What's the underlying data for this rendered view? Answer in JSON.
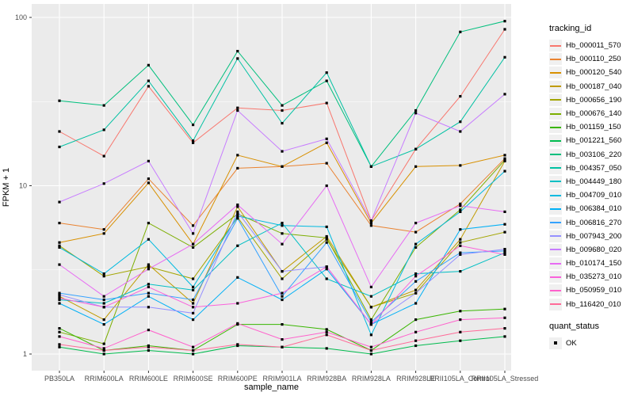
{
  "chart_data": {
    "type": "line",
    "title": "",
    "xlabel": "sample_name",
    "ylabel": "FPKM + 1",
    "y_scale": "log10",
    "ylim": [
      1,
      100
    ],
    "y_major_ticks": [
      1,
      10,
      100
    ],
    "y_tick_labels": [
      "1",
      "10",
      "100"
    ],
    "y_minor_ticks": [
      3.162,
      31.62
    ],
    "grid": true,
    "panel_background": "#EBEBEB",
    "gridline_color": "#FFFFFF",
    "tick_label_color": "#4D4D4D",
    "point_marker": {
      "shape": "square",
      "color": "#000000"
    },
    "legend_position": "right",
    "legend": {
      "tracking_title": "tracking_id",
      "quant_title": "quant_status",
      "quant_items": [
        {
          "label": "OK",
          "marker": "black-square"
        }
      ]
    },
    "categories": [
      "PB350LA",
      "RRIM600LA",
      "RRIM600LE",
      "RRIM600SE",
      "RRIM600PE",
      "RRIM901LA",
      "RRIM928BA",
      "RRIM928LA",
      "RRIM928LE",
      "RRII105LA_Control",
      "RRII105LA_Stressed"
    ],
    "series": [
      {
        "name": "Hb_000011_570",
        "color": "#F8766D",
        "values": [
          21,
          15,
          39,
          18,
          29,
          28,
          31,
          6.2,
          16.5,
          34,
          85
        ]
      },
      {
        "name": "Hb_000110_250",
        "color": "#EA8331",
        "values": [
          6.0,
          5.5,
          11.0,
          5.8,
          12.7,
          13.0,
          13.6,
          5.8,
          5.3,
          7.8,
          14.5
        ]
      },
      {
        "name": "Hb_000120_540",
        "color": "#D89000",
        "values": [
          4.6,
          5.2,
          10.4,
          4.5,
          15.2,
          13.0,
          18.0,
          6.0,
          13.0,
          13.2,
          15.2
        ]
      },
      {
        "name": "Hb_000187_040",
        "color": "#C09B00",
        "values": [
          2.2,
          1.6,
          3.4,
          2.0,
          7.5,
          3.1,
          5.0,
          1.9,
          2.4,
          4.8,
          14.0
        ]
      },
      {
        "name": "Hb_000656_190",
        "color": "#A3A500",
        "values": [
          4.4,
          2.9,
          3.3,
          2.8,
          6.5,
          2.8,
          4.8,
          1.9,
          2.3,
          4.6,
          5.3
        ]
      },
      {
        "name": "Hb_000676_140",
        "color": "#7CAE00",
        "values": [
          1.35,
          1.15,
          6.0,
          4.3,
          6.8,
          5.2,
          4.9,
          1.6,
          4.3,
          7.2,
          14.2
        ]
      },
      {
        "name": "Hb_001159_150",
        "color": "#39B600",
        "values": [
          1.42,
          1.05,
          1.12,
          1.05,
          1.5,
          1.5,
          1.4,
          1.05,
          1.6,
          1.8,
          1.85
        ]
      },
      {
        "name": "Hb_001221_560",
        "color": "#00BB4E",
        "values": [
          1.1,
          1.0,
          1.05,
          1.0,
          1.12,
          1.1,
          1.08,
          1.0,
          1.12,
          1.2,
          1.27
        ]
      },
      {
        "name": "Hb_003106_220",
        "color": "#00BF7D",
        "values": [
          32,
          30,
          52,
          23,
          63,
          30,
          42,
          13,
          28,
          82,
          95
        ]
      },
      {
        "name": "Hb_004357_050",
        "color": "#00C1A3",
        "values": [
          17,
          21.5,
          42,
          18.5,
          57,
          23.5,
          47,
          13,
          16.5,
          24,
          58
        ]
      },
      {
        "name": "Hb_004449_180",
        "color": "#00BFC4",
        "values": [
          2.1,
          2.0,
          2.6,
          2.4,
          4.4,
          6.0,
          2.8,
          2.2,
          3.0,
          3.1,
          4.0
        ]
      },
      {
        "name": "Hb_004709_010",
        "color": "#00BAE0",
        "values": [
          4.3,
          3.0,
          4.8,
          2.5,
          6.6,
          5.8,
          5.7,
          1.3,
          4.5,
          7.0,
          12.2
        ]
      },
      {
        "name": "Hb_006384_010",
        "color": "#00B0F6",
        "values": [
          2.0,
          1.5,
          2.2,
          1.6,
          2.85,
          2.1,
          3.2,
          1.5,
          2.0,
          5.5,
          5.9
        ]
      },
      {
        "name": "Hb_006816_270",
        "color": "#35A2FF",
        "values": [
          2.3,
          2.1,
          2.3,
          2.1,
          6.4,
          2.2,
          4.6,
          1.55,
          2.7,
          4.0,
          4.1
        ]
      },
      {
        "name": "Hb_007943_200",
        "color": "#9590FF",
        "values": [
          2.25,
          1.9,
          1.9,
          1.75,
          7.0,
          3.1,
          3.3,
          1.5,
          2.3,
          3.9,
          4.2
        ]
      },
      {
        "name": "Hb_009680_020",
        "color": "#C77CFF",
        "values": [
          8.0,
          10.3,
          14.0,
          5.2,
          28,
          16,
          19,
          6.2,
          27,
          21,
          35
        ]
      },
      {
        "name": "Hb_010174_150",
        "color": "#E76BF3",
        "values": [
          3.4,
          2.2,
          3.2,
          4.5,
          7.7,
          4.5,
          10.0,
          2.5,
          6.0,
          7.6,
          7.0
        ]
      },
      {
        "name": "Hb_035273_010",
        "color": "#FA62DB",
        "values": [
          2.15,
          1.9,
          2.5,
          1.9,
          2.0,
          2.3,
          3.3,
          1.5,
          2.9,
          4.4,
          3.9
        ]
      },
      {
        "name": "Hb_050959_010",
        "color": "#FF61CC",
        "values": [
          1.27,
          1.08,
          1.39,
          1.1,
          1.52,
          1.22,
          1.35,
          1.1,
          1.35,
          1.6,
          1.64
        ]
      },
      {
        "name": "Hb_116420_010",
        "color": "#FF6A98",
        "values": [
          1.14,
          1.05,
          1.1,
          1.05,
          1.14,
          1.1,
          1.3,
          1.05,
          1.2,
          1.35,
          1.42
        ]
      }
    ]
  }
}
